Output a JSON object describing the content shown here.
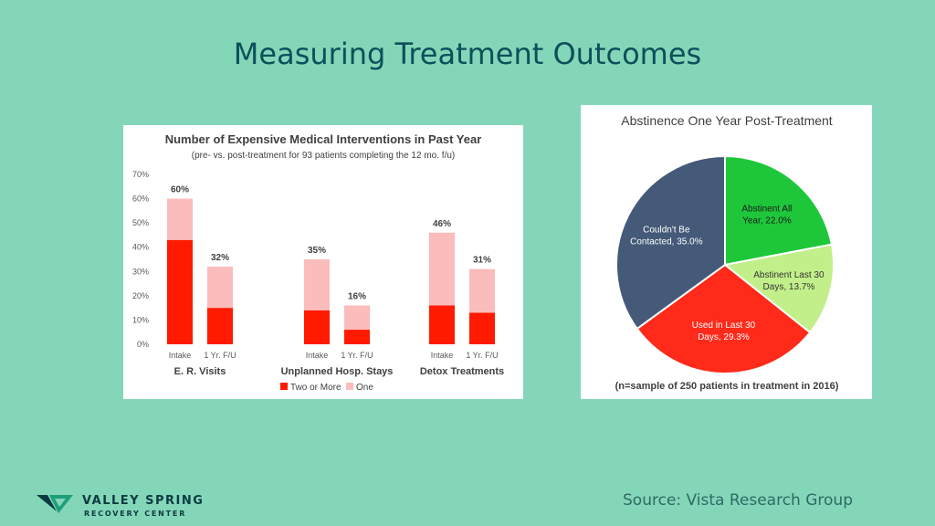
{
  "slide": {
    "title": "Measuring Treatment Outcomes",
    "source": "Source: Vista Research Group"
  },
  "logo": {
    "name": "VALLEY SPRING",
    "subtitle": "RECOVERY CENTER",
    "icon": "valley-spring-logo-mark"
  },
  "chart_data": [
    {
      "type": "bar",
      "stacked": true,
      "title": "Number of Expensive Medical Interventions in Past Year",
      "subtitle": "(pre- vs. post-treatment for 93 patients completing the 12 mo. f/u)",
      "ylim": [
        0,
        70
      ],
      "yticks": [
        "0%",
        "10%",
        "20%",
        "30%",
        "40%",
        "50%",
        "60%",
        "70%"
      ],
      "grid": false,
      "legend": "bottom",
      "groups": [
        {
          "label": "E. R. Visits",
          "bars": [
            {
              "label": "Intake",
              "two_or_more": 43,
              "one": 17,
              "total_label": "60%"
            },
            {
              "label": "1 Yr. F/U",
              "two_or_more": 15,
              "one": 17,
              "total_label": "32%"
            }
          ]
        },
        {
          "label": "Unplanned Hosp. Stays",
          "bars": [
            {
              "label": "Intake",
              "two_or_more": 14,
              "one": 21,
              "total_label": "35%"
            },
            {
              "label": "1 Yr. F/U",
              "two_or_more": 6,
              "one": 10,
              "total_label": "16%"
            }
          ]
        },
        {
          "label": "Detox Treatments",
          "bars": [
            {
              "label": "Intake",
              "two_or_more": 16,
              "one": 30,
              "total_label": "46%"
            },
            {
              "label": "1 Yr. F/U",
              "two_or_more": 13,
              "one": 18,
              "total_label": "31%"
            }
          ]
        }
      ],
      "series": [
        {
          "name": "Two or More",
          "key": "two_or_more",
          "color": "#ff1a00"
        },
        {
          "name": "One",
          "key": "one",
          "color": "#fbbcbc"
        }
      ]
    },
    {
      "type": "pie",
      "title": "Abstinence One Year Post-Treatment",
      "footnote": "(n=sample of 250 patients in treatment in 2016)",
      "slices": [
        {
          "label_lines": [
            "Abstinent All",
            "Year, 22.0%"
          ],
          "value": 22.0,
          "color": "#1ec73a"
        },
        {
          "label_lines": [
            "Abstinent Last 30",
            "Days, 13.7%"
          ],
          "value": 13.7,
          "color": "#c2ef8a"
        },
        {
          "label_lines": [
            "Used in Last 30",
            "Days, 29.3%"
          ],
          "value": 29.3,
          "color": "#ff2a1a"
        },
        {
          "label_lines": [
            "Couldn't Be",
            "Contacted, 35.0%"
          ],
          "value": 35.0,
          "color": "#445a78"
        }
      ]
    }
  ]
}
